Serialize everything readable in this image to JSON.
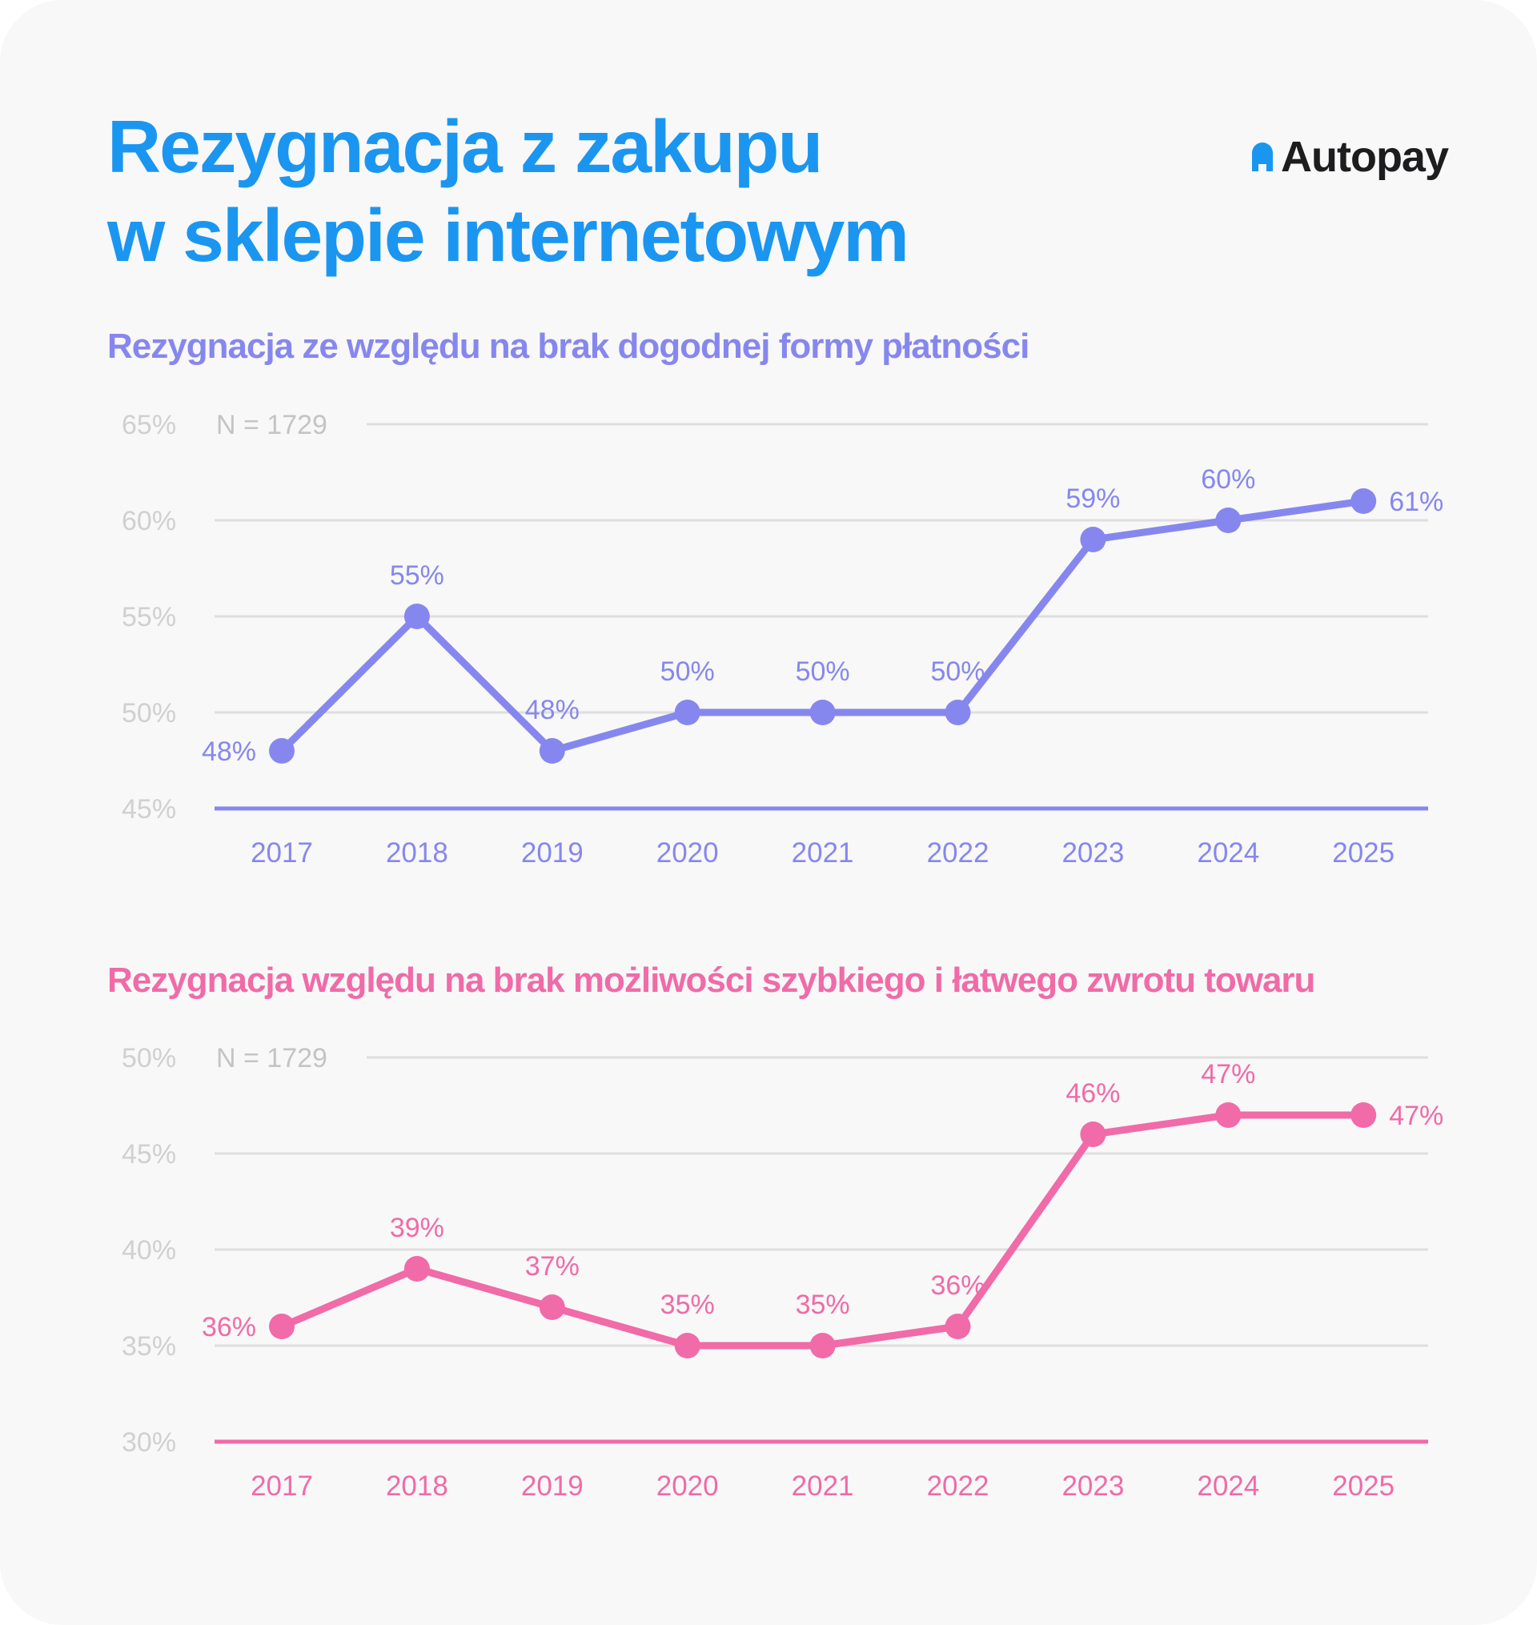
{
  "title": {
    "line1": "Rezygnacja z zakupu",
    "line2": "w sklepie internetowym"
  },
  "logo": {
    "text": "Autopay",
    "icon": "autopay-logo-icon"
  },
  "colors": {
    "title": "#1a96f0",
    "series1": "#8687ee",
    "series2": "#f06ba8",
    "grid": "#dedede",
    "tick": "#d0d0d0",
    "n_label": "#c4c4c4",
    "background": "#f8f8f8"
  },
  "chart_data": [
    {
      "type": "line",
      "title": "Rezygnacja ze względu na brak dogodnej formy płatności",
      "note": "N = 1729",
      "x": [
        "2017",
        "2018",
        "2019",
        "2020",
        "2021",
        "2022",
        "2023",
        "2024",
        "2025"
      ],
      "series": [
        {
          "values": [
            48,
            55,
            48,
            50,
            50,
            50,
            59,
            60,
            61
          ]
        }
      ],
      "data_labels": [
        "48%",
        "55%",
        "48%",
        "50%",
        "50%",
        "50%",
        "59%",
        "60%",
        "61%"
      ],
      "yticks": [
        "45%",
        "50%",
        "55%",
        "60%",
        "65%"
      ],
      "ylim": [
        45,
        65
      ],
      "grid": true
    },
    {
      "type": "line",
      "title": "Rezygnacja względu na brak możliwości szybkiego i łatwego zwrotu towaru",
      "note": "N = 1729",
      "x": [
        "2017",
        "2018",
        "2019",
        "2020",
        "2021",
        "2022",
        "2023",
        "2024",
        "2025"
      ],
      "series": [
        {
          "values": [
            36,
            39,
            37,
            35,
            35,
            36,
            46,
            47,
            47
          ]
        }
      ],
      "data_labels": [
        "36%",
        "39%",
        "37%",
        "35%",
        "35%",
        "36%",
        "46%",
        "47%",
        "47%"
      ],
      "yticks": [
        "30%",
        "35%",
        "40%",
        "45%",
        "50%"
      ],
      "ylim": [
        30,
        50
      ],
      "grid": true
    }
  ]
}
